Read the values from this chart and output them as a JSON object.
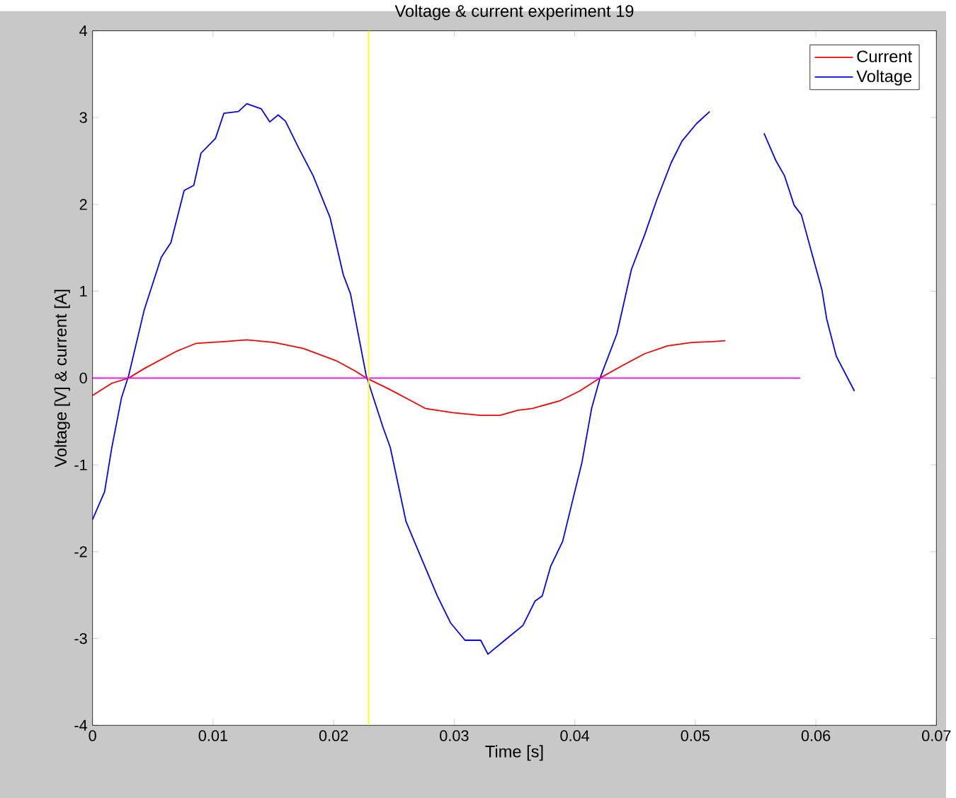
{
  "chart_data": {
    "type": "line",
    "title": "Voltage & current experiment 19",
    "xlabel": "Time [s]",
    "ylabel": "Voltage [V] & current [A]",
    "xlim": [
      0,
      0.07
    ],
    "ylim": [
      -4,
      4
    ],
    "xticks": [
      0,
      0.01,
      0.02,
      0.03,
      0.04,
      0.05,
      0.06,
      0.07
    ],
    "yticks": [
      -4,
      -3,
      -2,
      -1,
      0,
      1,
      2,
      3,
      4
    ],
    "legend": "top right",
    "series": [
      {
        "name": "Current",
        "color": "#ff0000",
        "x": [
          0,
          0.0016,
          0.003,
          0.0043,
          0.007,
          0.0086,
          0.0109,
          0.0128,
          0.0151,
          0.0175,
          0.0202,
          0.0218,
          0.0227,
          0.0245,
          0.0264,
          0.0276,
          0.0299,
          0.0322,
          0.0338,
          0.0353,
          0.0365,
          0.0388,
          0.0404,
          0.0421,
          0.0439,
          0.0458,
          0.0477,
          0.0497,
          0.0514,
          0.0525
        ],
        "values": [
          -0.2,
          -0.06,
          0,
          0.11,
          0.31,
          0.4,
          0.42,
          0.44,
          0.41,
          0.34,
          0.2,
          0.08,
          0,
          -0.12,
          -0.26,
          -0.35,
          -0.4,
          -0.43,
          -0.43,
          -0.37,
          -0.35,
          -0.26,
          -0.15,
          0,
          0.14,
          0.28,
          0.37,
          0.41,
          0.42,
          0.43
        ]
      },
      {
        "name": "Voltage",
        "color": "#0000ff",
        "x": [
          0,
          0.001,
          0.0016,
          0.0024,
          0.003,
          0.0043,
          0.0057,
          0.0065,
          0.0076,
          0.0084,
          0.009,
          0.0102,
          0.0109,
          0.0121,
          0.0128,
          0.014,
          0.0147,
          0.0154,
          0.016,
          0.0171,
          0.0183,
          0.0197,
          0.0208,
          0.0214,
          0.0227,
          0.0241,
          0.0247,
          0.026,
          0.0272,
          0.0286,
          0.0297,
          0.0309,
          0.0322,
          0.0328,
          0.0342,
          0.0357,
          0.0367,
          0.0373,
          0.038,
          0.039,
          0.04,
          0.0406,
          0.0414,
          0.0421,
          0.0435,
          0.0447,
          0.0458,
          0.0468,
          0.048,
          0.0489,
          0.0501,
          0.0512,
          0.0535,
          0.0557,
          0.0567,
          0.0574,
          0.0582,
          0.0588,
          0.0597,
          0.0605,
          0.0609,
          0.0617,
          0.0632
        ],
        "values": [
          -1.63,
          -1.31,
          -0.8,
          -0.23,
          0.03,
          0.79,
          1.39,
          1.56,
          2.16,
          2.22,
          2.59,
          2.76,
          3.05,
          3.07,
          3.16,
          3.1,
          2.95,
          3.03,
          2.96,
          2.65,
          2.33,
          1.85,
          1.19,
          0.97,
          0.03,
          -0.57,
          -0.8,
          -1.65,
          -2.05,
          -2.51,
          -2.82,
          -3.02,
          -3.02,
          -3.18,
          -3.02,
          -2.85,
          -2.57,
          -2.51,
          -2.17,
          -1.88,
          -1.31,
          -0.97,
          -0.35,
          0,
          0.51,
          1.25,
          1.65,
          2.05,
          2.48,
          2.73,
          2.93,
          3.07,
          null,
          2.82,
          2.5,
          2.33,
          1.99,
          1.88,
          1.42,
          1.02,
          0.68,
          0.25,
          -0.15
        ]
      },
      {
        "color": "#ff00ff",
        "x": [
          0,
          0.0587
        ],
        "values": [
          0,
          0
        ]
      }
    ],
    "ref_lines": [
      {
        "axis": "x",
        "value": 0.0229,
        "color": "#ffff00"
      }
    ]
  }
}
